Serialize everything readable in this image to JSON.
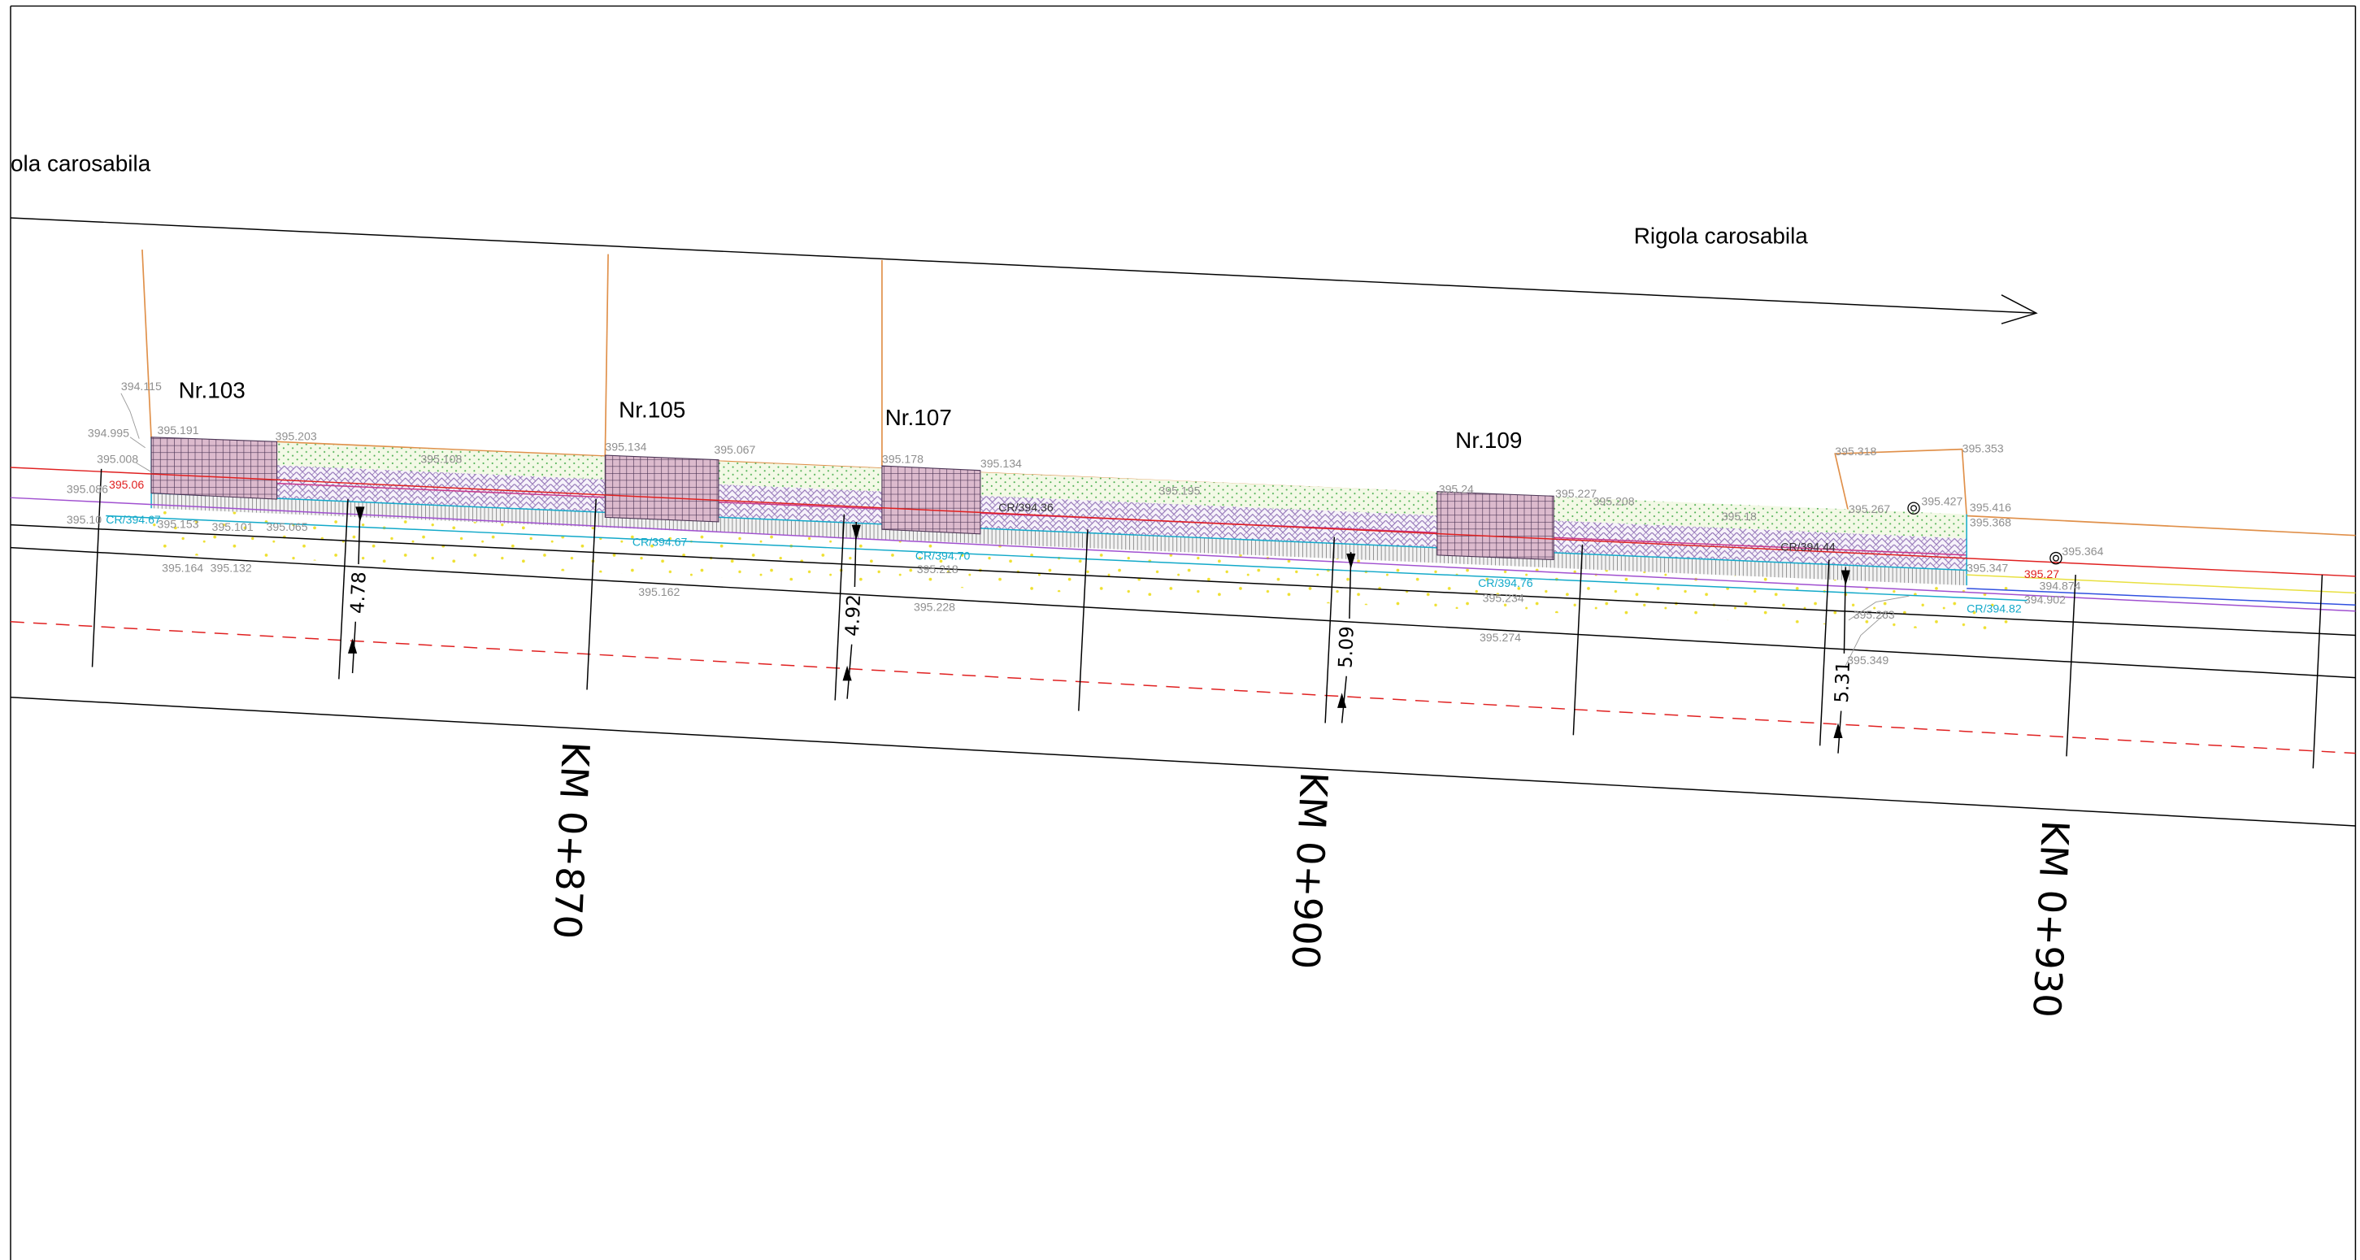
{
  "drawing": {
    "street_labels": {
      "left": "ola carosabila",
      "right": "Rigola carosabila"
    },
    "lots": [
      "Nr.103",
      "Nr.105",
      "Nr.107",
      "Nr.109"
    ],
    "chainages": [
      "KM 0+870",
      "KM 0+900",
      "KM 0+930"
    ],
    "widths": [
      "4.78",
      "4.92",
      "5.09",
      "5.31"
    ],
    "elevations": [
      "394.115",
      "394.995",
      "395.008",
      "395.086",
      "395.10",
      "395.191",
      "395.203",
      "395.153",
      "395.101",
      "395.065",
      "395.164",
      "395.132",
      "395.108",
      "395.134",
      "395.067",
      "395.162",
      "395.178",
      "395.134",
      "395.218",
      "395.228",
      "395.195",
      "395.24",
      "395.227",
      "395.208",
      "395.18",
      "395.234",
      "395.274",
      "395.318",
      "395.353",
      "395.267",
      "395.427",
      "395.416",
      "395.368",
      "395.364",
      "395.347",
      "394.874",
      "394.902",
      "395.263",
      "395.349"
    ],
    "red_elevations": [
      "395.06",
      "395.27"
    ],
    "curb_levels": [
      "CR/394.67",
      "CR/394.67",
      "CR/394.70",
      "CR/394.76",
      "CR/394.82"
    ],
    "curb_levels_dark": [
      "CR/394.36",
      "CR/394.44"
    ],
    "colors": {
      "axis_line": "#e02020",
      "property_line": "#e0904a",
      "curb_line": "#12a9c9",
      "kerb_inner_line": "#c8388a",
      "offset_line": "#a050d0",
      "drain_line": "#3050e0",
      "verge_line": "#e8e040"
    }
  }
}
